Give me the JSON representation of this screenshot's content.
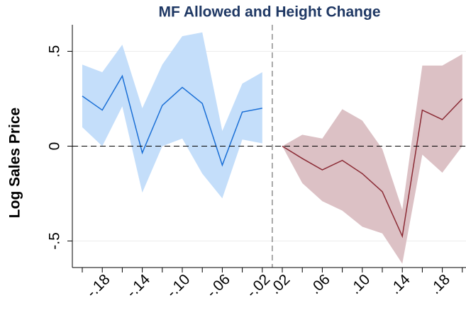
{
  "chart_data": {
    "type": "line",
    "title": "MF Allowed and Height Change",
    "y_label": "Log Sales Price",
    "categories": [
      null,
      "-.18",
      null,
      "-.14",
      null,
      "-.10",
      null,
      "-.06",
      null,
      "-.02",
      ".02",
      null,
      ".06",
      null,
      ".10",
      null,
      ".14",
      null,
      ".18",
      null
    ],
    "series": [
      {
        "color": "#1a6fd6",
        "band_color": "#c4defa",
        "values": [
          0.264,
          0.19,
          0.37,
          -0.035,
          0.215,
          0.31,
          0.225,
          -0.1,
          0.18,
          0.2,
          null,
          null,
          null,
          null,
          null,
          null,
          null,
          null,
          null,
          null
        ],
        "upper": [
          0.43,
          0.39,
          0.535,
          0.2,
          0.43,
          0.58,
          0.6,
          0.08,
          0.33,
          0.39,
          null,
          null,
          null,
          null,
          null,
          null,
          null,
          null,
          null,
          null
        ],
        "lower": [
          0.1,
          0.0,
          0.21,
          -0.245,
          0.0,
          0.04,
          -0.145,
          -0.275,
          0.035,
          0.015,
          null,
          null,
          null,
          null,
          null,
          null,
          null,
          null,
          null,
          null
        ]
      },
      {
        "color": "#8b2b35",
        "band_color": "#dcc1c5",
        "values": [
          null,
          null,
          null,
          null,
          null,
          null,
          null,
          null,
          null,
          null,
          0,
          -0.065,
          -0.125,
          -0.075,
          -0.145,
          -0.24,
          -0.475,
          0.19,
          0.14,
          0.25
        ],
        "upper": [
          null,
          null,
          null,
          null,
          null,
          null,
          null,
          null,
          null,
          null,
          0,
          0.06,
          0.04,
          0.195,
          0.135,
          -0.015,
          -0.335,
          0.425,
          0.425,
          0.485
        ],
        "lower": [
          null,
          null,
          null,
          null,
          null,
          null,
          null,
          null,
          null,
          null,
          0,
          -0.195,
          -0.29,
          -0.34,
          -0.425,
          -0.46,
          -0.62,
          -0.045,
          -0.14,
          0
        ]
      }
    ],
    "ylim": [
      -0.64,
      0.64
    ],
    "yticks": [
      {
        "value": -0.5,
        "label": "-.5"
      },
      0,
      {
        "value": 0.5,
        "label": ".5"
      }
    ],
    "grid": true,
    "hline": 0
  }
}
